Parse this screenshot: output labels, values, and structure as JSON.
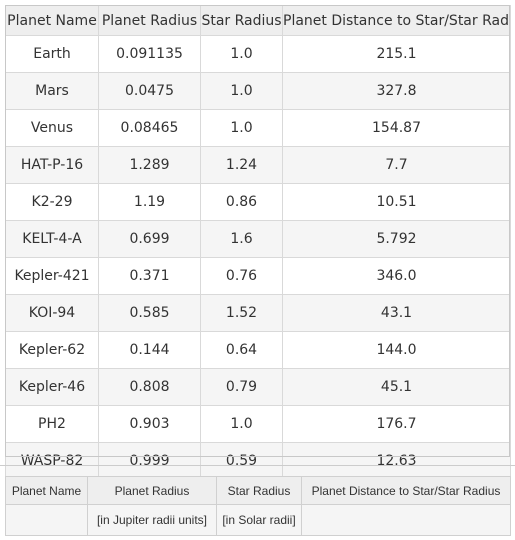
{
  "main_table": {
    "headers": [
      "Planet Name",
      "Planet Radius",
      "Star Radius",
      "Planet Distance to Star/Star Radius"
    ],
    "rows": [
      [
        "Earth",
        "0.091135",
        "1.0",
        "215.1"
      ],
      [
        "Mars",
        "0.0475",
        "1.0",
        "327.8"
      ],
      [
        "Venus",
        "0.08465",
        "1.0",
        "154.87"
      ],
      [
        "HAT-P-16",
        "1.289",
        "1.24",
        "7.7"
      ],
      [
        "K2-29",
        "1.19",
        "0.86",
        "10.51"
      ],
      [
        "KELT-4-A",
        "0.699",
        "1.6",
        "5.792"
      ],
      [
        "Kepler-421",
        "0.371",
        "0.76",
        "346.0"
      ],
      [
        "KOI-94",
        "0.585",
        "1.52",
        "43.1"
      ],
      [
        "Kepler-62",
        "0.144",
        "0.64",
        "144.0"
      ],
      [
        "Kepler-46",
        "0.808",
        "0.79",
        "45.1"
      ],
      [
        "PH2",
        "0.903",
        "1.0",
        "176.7"
      ],
      [
        "WASP-82",
        "0.999",
        "0.59",
        "12.63"
      ]
    ]
  },
  "units_table": {
    "headers": [
      "Planet Name",
      "Planet Radius",
      "Star Radius",
      "Planet Distance to Star/Star Radius"
    ],
    "units": [
      "",
      "[in Jupiter radii units]",
      "[in Solar radii]",
      ""
    ]
  }
}
